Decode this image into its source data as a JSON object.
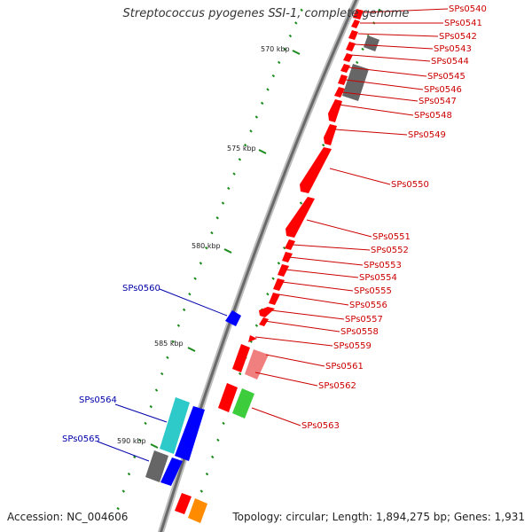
{
  "title": "Streptococcus pyogenes SSI-1, complete genome",
  "footer": {
    "accession": "Accession: NC_004606",
    "topology": "Topology: circular; Length: 1,894,275 bp; Genes: 1,931"
  },
  "colors": {
    "forward": "#ff0000",
    "forward_light": "#f08080",
    "reverse_blue": "#0000ff",
    "cyan": "#2ec9c9",
    "gray": "#666666",
    "green": "#3ccc3c",
    "orange": "#ff8c00",
    "label_red": "#cc0000",
    "label_blue": "#0000aa",
    "tick_green": "#1a8a1a"
  },
  "kbp_ticks": [
    "570 kbp",
    "575 kbp",
    "580 kbp",
    "585 kbp",
    "590 kbp"
  ],
  "gene_labels": {
    "red": [
      "SPs0540",
      "SPs0541",
      "SPs0542",
      "SPs0543",
      "SPs0544",
      "SPs0545",
      "SPs0546",
      "SPs0547",
      "SPs0548",
      "SPs0549",
      "SPs0550",
      "SPs0551",
      "SPs0552",
      "SPs0553",
      "SPs0554",
      "SPs0555",
      "SPs0556",
      "SPs0557",
      "SPs0558",
      "SPs0559",
      "SPs0561",
      "SPs0562",
      "SPs0563"
    ],
    "blue": [
      "SPs0560",
      "SPs0564",
      "SPs0565"
    ]
  }
}
